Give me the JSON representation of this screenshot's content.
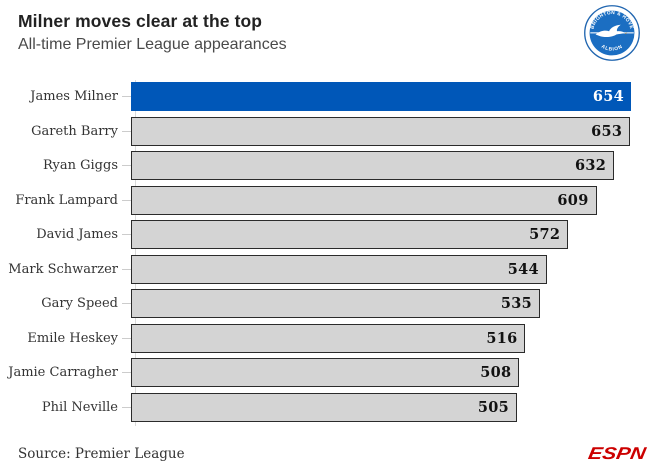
{
  "header": {
    "title": "Milner moves clear at the top",
    "subtitle": "All-time Premier League appearances"
  },
  "club_logo": {
    "name": "Brighton & Hove Albion crest",
    "top_text": "BRIGHTON & HOVE",
    "bottom_text": "ALBION"
  },
  "footer": {
    "source": "Source: Premier League",
    "brand": "ESPN"
  },
  "colors": {
    "highlight": "#0057b8",
    "bar_fill": "#d4d4d4",
    "bar_border": "#2b2b2b",
    "espn_red": "#cc0000",
    "logo_blue": "#1b6ec2",
    "logo_ring": "#2166b0"
  },
  "chart_data": {
    "type": "bar",
    "orientation": "horizontal",
    "title": "Milner moves clear at the top",
    "subtitle": "All-time Premier League appearances",
    "categories": [
      "James Milner",
      "Gareth Barry",
      "Ryan Giggs",
      "Frank Lampard",
      "David James",
      "Mark Schwarzer",
      "Gary Speed",
      "Emile Heskey",
      "Jamie Carragher",
      "Phil Neville"
    ],
    "values": [
      654,
      653,
      632,
      609,
      572,
      544,
      535,
      516,
      508,
      505
    ],
    "xlim": [
      0,
      654
    ],
    "highlight_index": 0,
    "highlight_category": "James Milner",
    "value_labels": true,
    "grid": false,
    "legend": false,
    "source": "Source: Premier League"
  }
}
